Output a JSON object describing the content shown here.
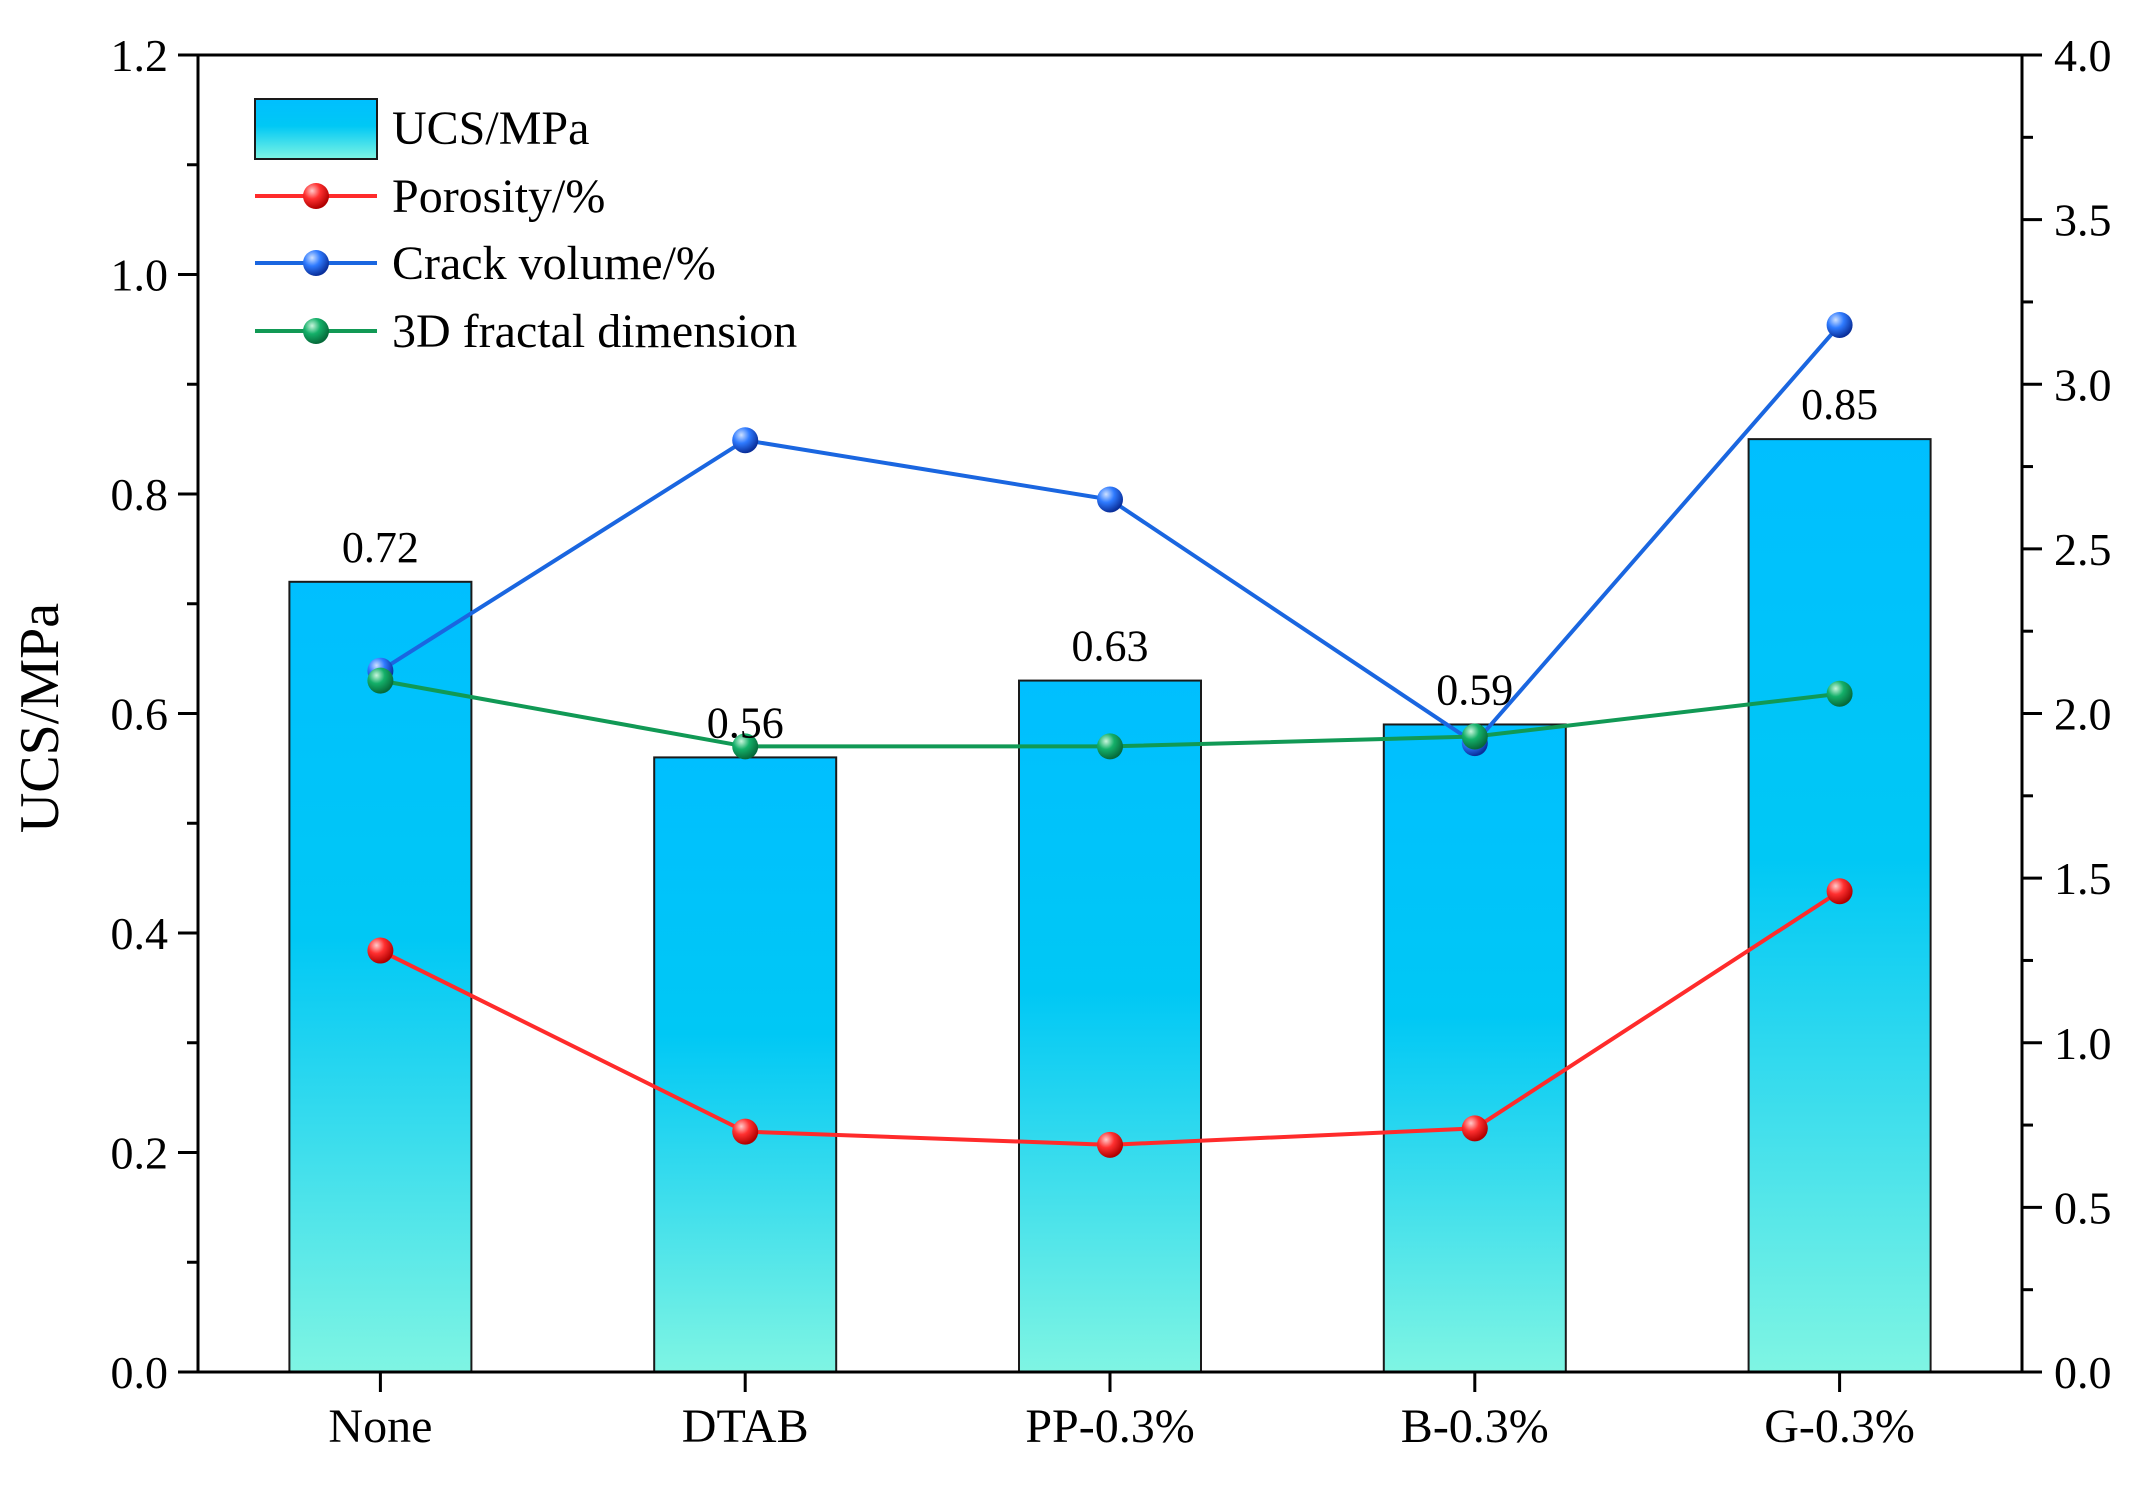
{
  "chart_data": {
    "type": "bar",
    "title": "",
    "xlabel": "",
    "ylabel": "UCS/MPa",
    "y2label": "",
    "categories": [
      "None",
      "DTAB",
      "PP-0.3%",
      "B-0.3%",
      "G-0.3%"
    ],
    "ylim": [
      0,
      1.2
    ],
    "y2lim": [
      0,
      4.0
    ],
    "yticks": [
      "0.0",
      "0.2",
      "0.4",
      "0.6",
      "0.8",
      "1.0",
      "1.2"
    ],
    "y2ticks": [
      "0.0",
      "0.5",
      "1.0",
      "1.5",
      "2.0",
      "2.5",
      "3.0",
      "3.5",
      "4.0"
    ],
    "bars": {
      "name": "UCS/MPa",
      "values": [
        0.72,
        0.56,
        0.63,
        0.59,
        0.85
      ],
      "labels": [
        "0.72",
        "0.56",
        "0.63",
        "0.59",
        "0.85"
      ],
      "colors": {
        "top": "#00bfff",
        "bottom": "#7ff5e3",
        "edge": "#1a1a1a"
      }
    },
    "series": [
      {
        "name": "Porosity/%",
        "axis": "right",
        "values": [
          1.28,
          0.73,
          0.69,
          0.74,
          1.46
        ],
        "color": "#ff2b2b"
      },
      {
        "name": "Crack volume/%",
        "axis": "right",
        "values": [
          2.13,
          2.83,
          2.65,
          1.91,
          3.18
        ],
        "color": "#1a66e0"
      },
      {
        "name": "3D fractal dimension",
        "axis": "right",
        "values": [
          2.1,
          1.9,
          1.9,
          1.93,
          2.06
        ],
        "color": "#119955"
      }
    ],
    "legend": {
      "position": "top-left",
      "entries": [
        "UCS/MPa",
        "Porosity/%",
        "Crack volume/%",
        "3D fractal dimension"
      ]
    }
  }
}
